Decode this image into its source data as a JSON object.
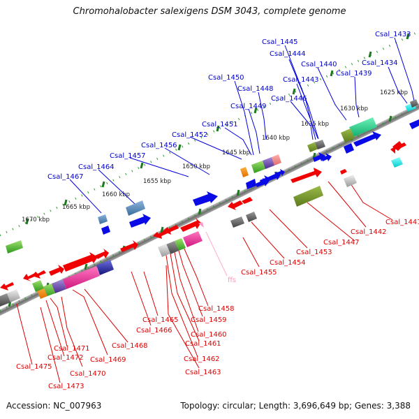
{
  "title": "Chromohalobacter salexigens DSM 3043, complete genome",
  "footer": {
    "accession": "Accession: NC_007963",
    "topology": "Topology: circular; Length: 3,696,649 bp; Genes: 3,388"
  },
  "kbp_labels": [
    "1625 kbp",
    "1630 kbp",
    "1635 kbp",
    "1640 kbp",
    "1645 kbp",
    "1650 kbp",
    "1655 kbp",
    "1660 kbp",
    "1665 kbp",
    "1670 kbp"
  ],
  "forward_genes": [
    "Csal_1433",
    "Csal_1434",
    "Csal_1439",
    "Csal_1440",
    "Csal_1443",
    "Csal_1444",
    "Csal_1445",
    "Csal_1446",
    "Csal_1448",
    "Csal_1449",
    "Csal_1450",
    "Csal_1451",
    "Csal_1452",
    "Csal_1456",
    "Csal_1457",
    "Csal_1464",
    "Csal_1467"
  ],
  "reverse_genes": [
    "Csal_1441",
    "Csal_1442",
    "Csal_1447",
    "Csal_1453",
    "Csal_1454",
    "Csal_1455",
    "Csal_1458",
    "Csal_1459",
    "Csal_1460",
    "Csal_1461",
    "Csal_1462",
    "Csal_1463",
    "Csal_1465",
    "Csal_1466",
    "Csal_1468",
    "Csal_1469",
    "Csal_1470",
    "Csal_1471",
    "Csal_1472",
    "Csal_1473",
    "Csal_1475"
  ],
  "feature_labels": [
    "ffs"
  ],
  "colors": {
    "forward_label": "#0000cc",
    "reverse_label": "#dd0000",
    "ffs_label": "#ff99bb",
    "backbone": "#808080",
    "tick": "#228822"
  }
}
